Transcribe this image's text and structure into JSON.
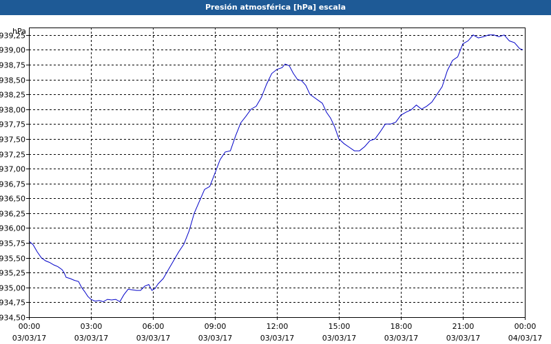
{
  "window": {
    "title": "Presión atmosférica [hPa] escala"
  },
  "chart_data": {
    "type": "line",
    "title": "Presión atmosférica [hPa] escala",
    "unit_label": "hPa",
    "xlabel": "",
    "ylabel": "",
    "ylim": [
      934.5,
      939.375
    ],
    "xlim_hours": [
      0,
      24
    ],
    "y_ticks": [
      {
        "value": 934.5,
        "label": "934,50"
      },
      {
        "value": 934.75,
        "label": "934,75"
      },
      {
        "value": 935.0,
        "label": "935,00"
      },
      {
        "value": 935.25,
        "label": "935,25"
      },
      {
        "value": 935.5,
        "label": "935,50"
      },
      {
        "value": 935.75,
        "label": "935,75"
      },
      {
        "value": 936.0,
        "label": "936,00"
      },
      {
        "value": 936.25,
        "label": "936,25"
      },
      {
        "value": 936.5,
        "label": "936,50"
      },
      {
        "value": 936.75,
        "label": "936,75"
      },
      {
        "value": 937.0,
        "label": "937,00"
      },
      {
        "value": 937.25,
        "label": "937,25"
      },
      {
        "value": 937.5,
        "label": "937,50"
      },
      {
        "value": 937.75,
        "label": "937,75"
      },
      {
        "value": 938.0,
        "label": "938,00"
      },
      {
        "value": 938.25,
        "label": "938,25"
      },
      {
        "value": 938.5,
        "label": "938,50"
      },
      {
        "value": 938.75,
        "label": "938,75"
      },
      {
        "value": 939.0,
        "label": "939,00"
      },
      {
        "value": 939.25,
        "label": "939,25"
      }
    ],
    "x_ticks": [
      {
        "hour": 0,
        "time": "00:00",
        "date": "03/03/17"
      },
      {
        "hour": 3,
        "time": "03:00",
        "date": "03/03/17"
      },
      {
        "hour": 6,
        "time": "06:00",
        "date": "03/03/17"
      },
      {
        "hour": 9,
        "time": "09:00",
        "date": "03/03/17"
      },
      {
        "hour": 12,
        "time": "12:00",
        "date": "03/03/17"
      },
      {
        "hour": 15,
        "time": "15:00",
        "date": "03/03/17"
      },
      {
        "hour": 18,
        "time": "18:00",
        "date": "03/03/17"
      },
      {
        "hour": 21,
        "time": "21:00",
        "date": "03/03/17"
      },
      {
        "hour": 24,
        "time": "00:00",
        "date": "04/03/17"
      }
    ],
    "grid": true,
    "line_color": "#0000c8",
    "series": [
      {
        "points": [
          [
            0.0,
            935.78
          ],
          [
            0.2,
            935.72
          ],
          [
            0.4,
            935.6
          ],
          [
            0.6,
            935.5
          ],
          [
            0.8,
            935.45
          ],
          [
            1.0,
            935.42
          ],
          [
            1.2,
            935.38
          ],
          [
            1.4,
            935.35
          ],
          [
            1.6,
            935.3
          ],
          [
            1.7,
            935.25
          ],
          [
            1.8,
            935.17
          ],
          [
            2.0,
            935.15
          ],
          [
            2.2,
            935.12
          ],
          [
            2.4,
            935.1
          ],
          [
            2.55,
            935.0
          ],
          [
            2.7,
            934.93
          ],
          [
            2.85,
            934.85
          ],
          [
            3.0,
            934.8
          ],
          [
            3.2,
            934.77
          ],
          [
            3.4,
            934.78
          ],
          [
            3.6,
            934.76
          ],
          [
            3.8,
            934.8
          ],
          [
            4.0,
            934.79
          ],
          [
            4.2,
            934.8
          ],
          [
            4.4,
            934.76
          ],
          [
            4.6,
            934.88
          ],
          [
            4.8,
            934.97
          ],
          [
            5.0,
            934.96
          ],
          [
            5.2,
            934.95
          ],
          [
            5.4,
            934.95
          ],
          [
            5.6,
            935.02
          ],
          [
            5.8,
            935.05
          ],
          [
            5.95,
            934.95
          ],
          [
            6.1,
            934.98
          ],
          [
            6.25,
            935.06
          ],
          [
            6.5,
            935.15
          ],
          [
            6.75,
            935.3
          ],
          [
            7.0,
            935.45
          ],
          [
            7.25,
            935.6
          ],
          [
            7.5,
            935.73
          ],
          [
            7.75,
            935.95
          ],
          [
            8.0,
            936.25
          ],
          [
            8.25,
            936.45
          ],
          [
            8.5,
            936.65
          ],
          [
            8.75,
            936.7
          ],
          [
            9.0,
            936.92
          ],
          [
            9.25,
            937.15
          ],
          [
            9.5,
            937.28
          ],
          [
            9.75,
            937.3
          ],
          [
            10.0,
            937.55
          ],
          [
            10.25,
            937.77
          ],
          [
            10.5,
            937.88
          ],
          [
            10.75,
            938.0
          ],
          [
            11.0,
            938.05
          ],
          [
            11.25,
            938.2
          ],
          [
            11.5,
            938.42
          ],
          [
            11.75,
            938.6
          ],
          [
            12.0,
            938.67
          ],
          [
            12.25,
            938.7
          ],
          [
            12.4,
            938.76
          ],
          [
            12.6,
            938.73
          ],
          [
            12.8,
            938.6
          ],
          [
            13.0,
            938.5
          ],
          [
            13.2,
            938.48
          ],
          [
            13.4,
            938.4
          ],
          [
            13.6,
            938.25
          ],
          [
            13.8,
            938.2
          ],
          [
            14.0,
            938.15
          ],
          [
            14.2,
            938.1
          ],
          [
            14.4,
            937.95
          ],
          [
            14.6,
            937.85
          ],
          [
            14.8,
            937.7
          ],
          [
            15.0,
            937.5
          ],
          [
            15.25,
            937.42
          ],
          [
            15.5,
            937.36
          ],
          [
            15.75,
            937.3
          ],
          [
            16.0,
            937.3
          ],
          [
            16.25,
            937.37
          ],
          [
            16.5,
            937.47
          ],
          [
            16.75,
            937.5
          ],
          [
            17.0,
            937.62
          ],
          [
            17.25,
            937.75
          ],
          [
            17.5,
            937.75
          ],
          [
            17.75,
            937.78
          ],
          [
            18.0,
            937.9
          ],
          [
            18.25,
            937.95
          ],
          [
            18.5,
            937.99
          ],
          [
            18.75,
            938.07
          ],
          [
            19.0,
            938.0
          ],
          [
            19.25,
            938.05
          ],
          [
            19.5,
            938.12
          ],
          [
            19.75,
            938.25
          ],
          [
            20.0,
            938.38
          ],
          [
            20.25,
            938.65
          ],
          [
            20.5,
            938.82
          ],
          [
            20.75,
            938.88
          ],
          [
            21.0,
            939.1
          ],
          [
            21.25,
            939.15
          ],
          [
            21.5,
            939.25
          ],
          [
            21.75,
            939.2
          ],
          [
            22.0,
            939.22
          ],
          [
            22.25,
            939.25
          ],
          [
            22.5,
            939.25
          ],
          [
            22.75,
            939.22
          ],
          [
            23.0,
            939.25
          ],
          [
            23.25,
            939.15
          ],
          [
            23.5,
            939.12
          ],
          [
            23.75,
            939.02
          ],
          [
            23.9,
            939.0
          ]
        ]
      }
    ]
  }
}
